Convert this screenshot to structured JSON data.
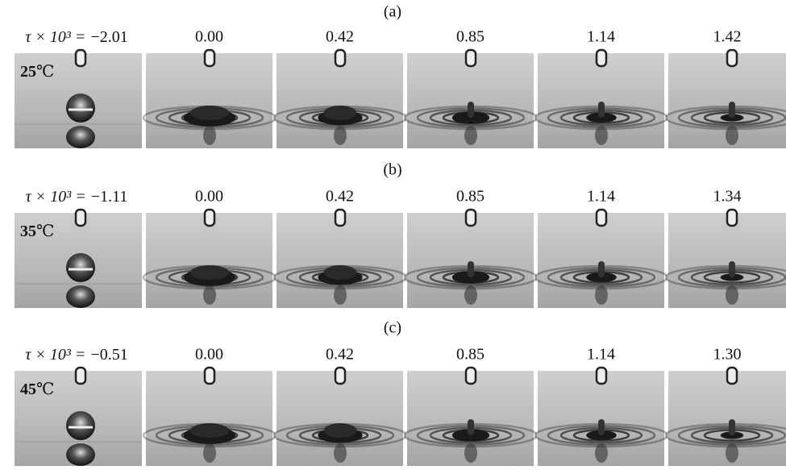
{
  "figure": {
    "panels": [
      {
        "label": "(a)",
        "tau_label": "τ × 10³ =",
        "times": [
          "−2.01",
          "0.00",
          "0.42",
          "0.85",
          "1.14",
          "1.42"
        ],
        "temperature": "25",
        "unit": "℃"
      },
      {
        "label": "(b)",
        "tau_label": "τ × 10³ =",
        "times": [
          "−1.11",
          "0.00",
          "0.42",
          "0.85",
          "1.14",
          "1.34"
        ],
        "temperature": "35",
        "unit": "℃"
      },
      {
        "label": "(c)",
        "tau_label": "τ × 10³ =",
        "times": [
          "−0.51",
          "0.00",
          "0.42",
          "0.85",
          "1.14",
          "1.30"
        ],
        "temperature": "45",
        "unit": "℃"
      }
    ]
  }
}
